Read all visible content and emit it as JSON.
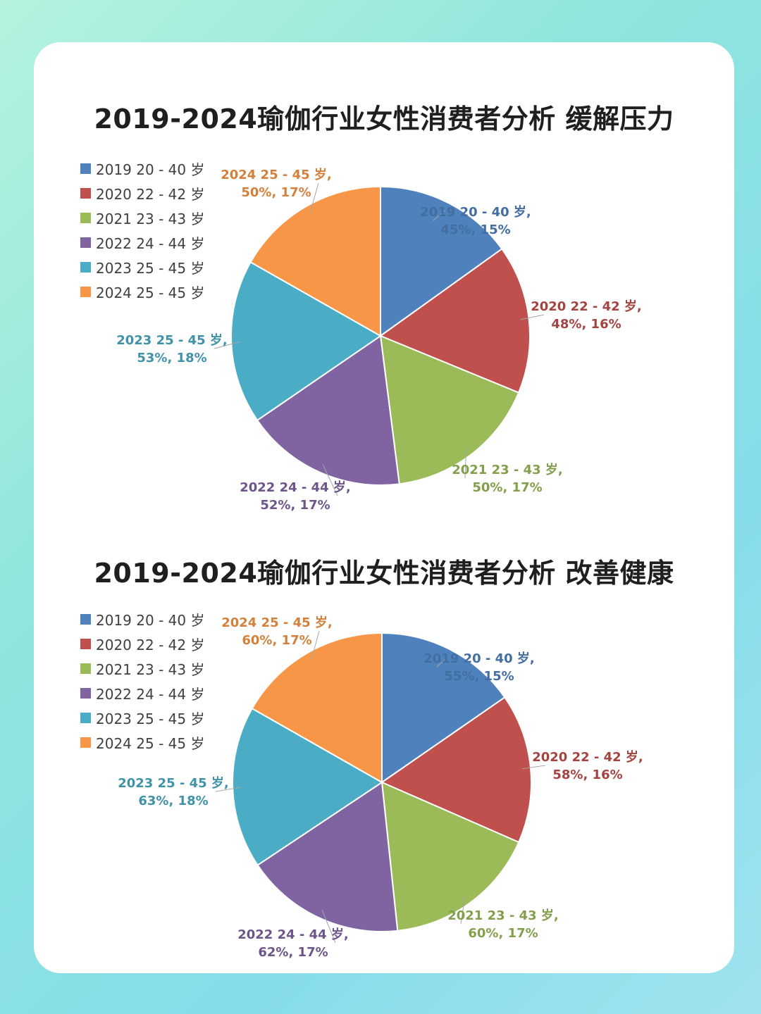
{
  "chart_data": [
    {
      "type": "pie",
      "title": "2019-2024瑜伽行业女性消费者分析 缓解压力",
      "legend_position": "top-left",
      "slices": [
        {
          "name": "2019 20 - 40 岁",
          "value": 45,
          "percent": 15,
          "label_line1": "2019 20 - 40 岁,",
          "label_line2": "45%, 15%",
          "color": "#4f81bd"
        },
        {
          "name": "2020 22 - 42 岁",
          "value": 48,
          "percent": 16,
          "label_line1": "2020 22 - 42 岁,",
          "label_line2": "48%, 16%",
          "color": "#c0504d"
        },
        {
          "name": "2021 23 - 43 岁",
          "value": 50,
          "percent": 17,
          "label_line1": "2021 23 - 43 岁,",
          "label_line2": "50%, 17%",
          "color": "#9bbb59"
        },
        {
          "name": "2022 24 - 44 岁",
          "value": 52,
          "percent": 17,
          "label_line1": "2022 24 - 44 岁,",
          "label_line2": "52%, 17%",
          "color": "#8064a2"
        },
        {
          "name": "2023 25 - 45 岁",
          "value": 53,
          "percent": 18,
          "label_line1": "2023 25 - 45 岁,",
          "label_line2": "53%, 18%",
          "color": "#4bacc6"
        },
        {
          "name": "2024 25 - 45 岁",
          "value": 50,
          "percent": 17,
          "label_line1": "2024 25 - 45 岁,",
          "label_line2": "50%, 17%",
          "color": "#f79646"
        }
      ]
    },
    {
      "type": "pie",
      "title": "2019-2024瑜伽行业女性消费者分析 改善健康",
      "legend_position": "top-left",
      "slices": [
        {
          "name": "2019 20 - 40 岁",
          "value": 55,
          "percent": 15,
          "label_line1": "2019 20 - 40 岁,",
          "label_line2": "55%, 15%",
          "color": "#4f81bd"
        },
        {
          "name": "2020 22 - 42 岁",
          "value": 58,
          "percent": 16,
          "label_line1": "2020 22 - 42 岁,",
          "label_line2": "58%, 16%",
          "color": "#c0504d"
        },
        {
          "name": "2021 23 - 43 岁",
          "value": 60,
          "percent": 17,
          "label_line1": "2021 23 - 43 岁,",
          "label_line2": "60%, 17%",
          "color": "#9bbb59"
        },
        {
          "name": "2022 24 - 44 岁",
          "value": 62,
          "percent": 17,
          "label_line1": "2022 24 - 44 岁,",
          "label_line2": "62%, 17%",
          "color": "#8064a2"
        },
        {
          "name": "2023 25 - 45 岁",
          "value": 63,
          "percent": 18,
          "label_line1": "2023 25 - 45 岁,",
          "label_line2": "63%, 18%",
          "color": "#4bacc6"
        },
        {
          "name": "2024 25 - 45 岁",
          "value": 60,
          "percent": 17,
          "label_line1": "2024 25 - 45 岁,",
          "label_line2": "60%, 17%",
          "color": "#f79646"
        }
      ]
    }
  ]
}
